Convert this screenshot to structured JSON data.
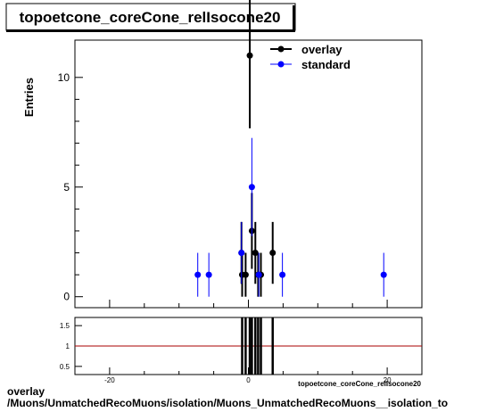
{
  "title": "topoetcone_coreCone_relIsocone20",
  "footer": {
    "line1": "overlay",
    "line2": "/Muons/UnmatchedRecoMuons/isolation/Muons_UnmatchedRecoMuons__isolation_to"
  },
  "chart_data": {
    "type": "scatter",
    "ylabel": "Entries",
    "xlabel": "topoetcone_coreCone_relIsocone20",
    "xlim": [
      -25,
      25
    ],
    "ylim": [
      -0.5,
      11.7
    ],
    "yticks": [
      0,
      5,
      10
    ],
    "xticks": [
      -20,
      0,
      20
    ],
    "legend_position": "top-right",
    "series": [
      {
        "name": "overlay",
        "color": "#000000",
        "points": [
          {
            "x": -1.0,
            "y": 2,
            "err": 1.41
          },
          {
            "x": -0.9,
            "y": 1,
            "err": 1.0
          },
          {
            "x": -0.4,
            "y": 1,
            "err": 1.0
          },
          {
            "x": 0.2,
            "y": 11,
            "err": 3.32
          },
          {
            "x": 0.5,
            "y": 3,
            "err": 1.73
          },
          {
            "x": 1.0,
            "y": 2,
            "err": 1.41
          },
          {
            "x": 1.4,
            "y": 1,
            "err": 1.0
          },
          {
            "x": 1.8,
            "y": 1,
            "err": 1.0
          },
          {
            "x": 3.5,
            "y": 2,
            "err": 1.41
          }
        ]
      },
      {
        "name": "standard",
        "color": "#0000ff",
        "points": [
          {
            "x": -7.3,
            "y": 1,
            "err": 1.0
          },
          {
            "x": -5.7,
            "y": 1,
            "err": 1.0
          },
          {
            "x": -1.0,
            "y": 2,
            "err": 1.41
          },
          {
            "x": 0.5,
            "y": 5,
            "err": 2.24
          },
          {
            "x": 1.5,
            "y": 1,
            "err": 1.0
          },
          {
            "x": 4.9,
            "y": 1,
            "err": 1.0
          },
          {
            "x": 19.5,
            "y": 1,
            "err": 1.0
          }
        ]
      }
    ],
    "ratio": {
      "ylim": [
        0.3,
        1.7
      ],
      "yticks": [
        0.5,
        1,
        1.5
      ],
      "reference": 1,
      "reference_color": "#aa0000",
      "x": [
        -0.9,
        -0.4,
        0.2,
        0.5,
        1.0,
        1.4,
        1.8,
        3.5
      ]
    }
  }
}
